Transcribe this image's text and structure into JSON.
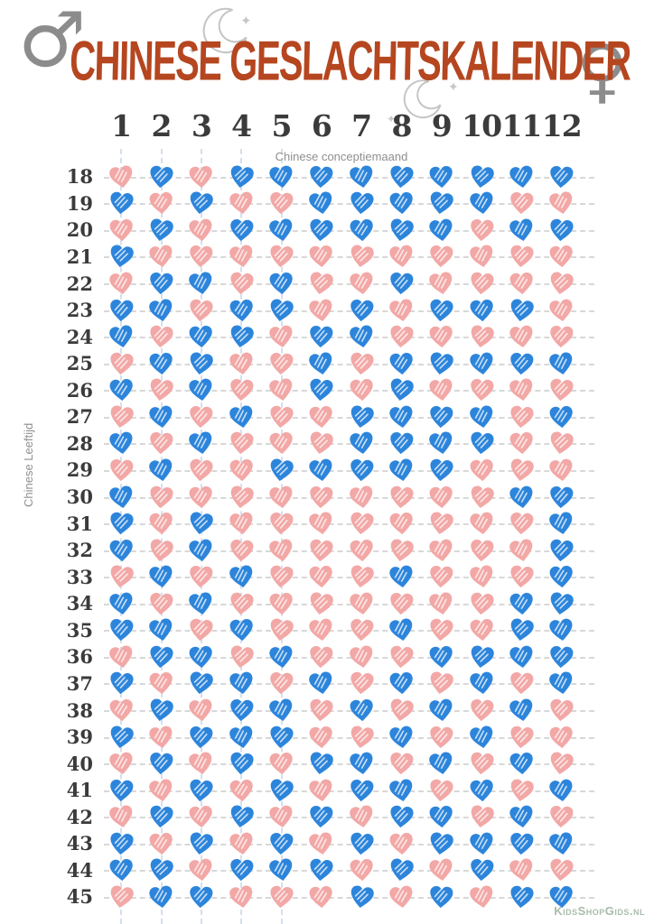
{
  "header": {
    "title": "CHINESE GESLACHTSKALENDER",
    "male_symbol": "♂",
    "female_symbol": "♀",
    "sparkle": "✦"
  },
  "footer": {
    "watermark": "KidsShopGids.nl"
  },
  "colors": {
    "boy_heart": "#2D85DB",
    "girl_heart": "#F2A8A6",
    "title": "#B5461F",
    "number": "#3B3B3B",
    "symbol": "#8C8C8C",
    "dash": "#D8D8D8",
    "watermark": "#A9BCA9"
  },
  "chart_data": {
    "type": "heatmap",
    "title": "Chinese geslachtskalender",
    "xlabel": "Chinese conceptiemaand",
    "ylabel": "Chinese Leeftijd",
    "x_categories": [
      1,
      2,
      3,
      4,
      5,
      6,
      7,
      8,
      9,
      10,
      11,
      12
    ],
    "y_categories": [
      18,
      19,
      20,
      21,
      22,
      23,
      24,
      25,
      26,
      27,
      28,
      29,
      30,
      31,
      32,
      33,
      34,
      35,
      36,
      37,
      38,
      39,
      40,
      41,
      42,
      43,
      44,
      45
    ],
    "legend": {
      "B": "boy (blue heart)",
      "G": "girl (pink heart)"
    },
    "rows": [
      {
        "age": 18,
        "values": "GBGBBBBBBBBB"
      },
      {
        "age": 19,
        "values": "BGBGGBBBBBGG"
      },
      {
        "age": 20,
        "values": "GBGBBBBBBGBB"
      },
      {
        "age": 21,
        "values": "BGGGGGGGGGGG"
      },
      {
        "age": 22,
        "values": "GBBGBGGBGGGG"
      },
      {
        "age": 23,
        "values": "BBGBBGBGBBBG"
      },
      {
        "age": 24,
        "values": "BGBBGBBGGGGG"
      },
      {
        "age": 25,
        "values": "GBBGGBGBBBBB"
      },
      {
        "age": 26,
        "values": "BGBGGBGBGGGG"
      },
      {
        "age": 27,
        "values": "GBGBGGBBBBGB"
      },
      {
        "age": 28,
        "values": "BGBGGGBBBBGG"
      },
      {
        "age": 29,
        "values": "GBGGBBBBBGGG"
      },
      {
        "age": 30,
        "values": "BGGGGGGGGGBB"
      },
      {
        "age": 31,
        "values": "BGBGGGGGGGGB"
      },
      {
        "age": 32,
        "values": "BGBGGGGGGGGB"
      },
      {
        "age": 33,
        "values": "GBGBGGGBGGGB"
      },
      {
        "age": 34,
        "values": "BGBGGGGGGGBB"
      },
      {
        "age": 35,
        "values": "BBGBGGGBGGBB"
      },
      {
        "age": 36,
        "values": "GBBGBGGGBBBB"
      },
      {
        "age": 37,
        "values": "BGBBGBGBGBGB"
      },
      {
        "age": 38,
        "values": "GBGBBGBGBGBG"
      },
      {
        "age": 39,
        "values": "BGBBBGGBGBGG"
      },
      {
        "age": 40,
        "values": "GBGBGBBGBGBG"
      },
      {
        "age": 41,
        "values": "BGBGBGBBGBGB"
      },
      {
        "age": 42,
        "values": "GBGBGBGBBGBG"
      },
      {
        "age": 43,
        "values": "BGBGBGBGBBBB"
      },
      {
        "age": 44,
        "values": "BBGBBBGBGBGG"
      },
      {
        "age": 45,
        "values": "GBBGGGBGBGBB"
      }
    ]
  }
}
